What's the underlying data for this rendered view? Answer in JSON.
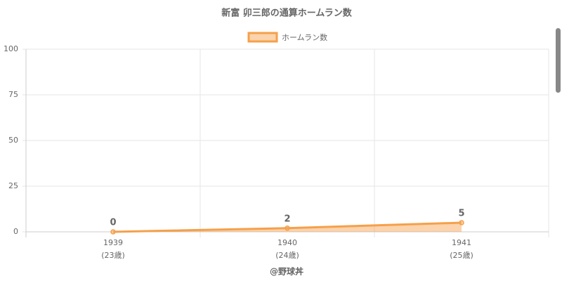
{
  "chart_data": {
    "type": "line",
    "title": "新富 卯三郎の通算ホームラン数",
    "categories": [
      "1939",
      "1940",
      "1941"
    ],
    "sublabels": [
      "(23歳)",
      "(24歳)",
      "(25歳)"
    ],
    "series": [
      {
        "name": "ホームラン数",
        "color": "#f5a04a",
        "fill": "rgba(247,168,92,0.5)",
        "values": [
          0,
          2,
          5
        ]
      }
    ],
    "ylim": [
      0,
      100
    ],
    "yticks": [
      0,
      25,
      50,
      75,
      100
    ],
    "grid": true,
    "legend": "top",
    "credit": "@野球丼"
  }
}
